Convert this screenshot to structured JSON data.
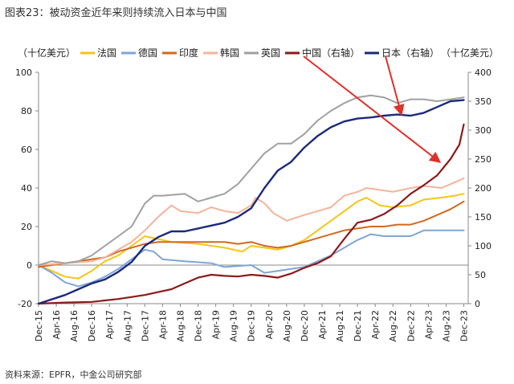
{
  "figure_title": "图表23：被动资金近年来则持续流入日本与中国",
  "source_note": "资料来源：EPFR，中金公司研究部",
  "chart_data": {
    "type": "line",
    "left_unit": "（十亿美元）",
    "right_unit": "（十亿美元）",
    "y_left": {
      "min": -20,
      "max": 100,
      "ticks": [
        -20,
        0,
        20,
        40,
        60,
        80,
        100
      ]
    },
    "y_right": {
      "min": 0,
      "max": 400,
      "ticks": [
        0,
        50,
        100,
        150,
        200,
        250,
        300,
        350,
        400
      ]
    },
    "x_range": [
      "2015-12",
      "2024-01"
    ],
    "x_ticks": [
      "Dec-15",
      "Apr-16",
      "Aug-16",
      "Dec-16",
      "Apr-17",
      "Aug-17",
      "Dec-17",
      "Apr-18",
      "Aug-18",
      "Dec-18",
      "Apr-19",
      "Aug-19",
      "Dec-19",
      "Apr-20",
      "Aug-20",
      "Dec-20",
      "Apr-21",
      "Aug-21",
      "Dec-21",
      "Apr-22",
      "Aug-22",
      "Dec-22",
      "Apr-23",
      "Aug-23",
      "Dec-23"
    ],
    "grid": false,
    "legend_position": "top",
    "series": [
      {
        "name": "法国",
        "axis": "left",
        "color": "#F5C518",
        "width": 2,
        "points": [
          [
            "2015-12",
            0
          ],
          [
            "2016-03",
            -3
          ],
          [
            "2016-06",
            -6
          ],
          [
            "2016-09",
            -7
          ],
          [
            "2016-12",
            -3
          ],
          [
            "2017-03",
            2
          ],
          [
            "2017-06",
            5
          ],
          [
            "2017-09",
            10
          ],
          [
            "2017-12",
            15
          ],
          [
            "2018-02",
            14
          ],
          [
            "2018-06",
            12
          ],
          [
            "2018-12",
            11
          ],
          [
            "2019-06",
            9
          ],
          [
            "2019-10",
            7
          ],
          [
            "2019-12",
            10
          ],
          [
            "2020-03",
            9
          ],
          [
            "2020-06",
            8
          ],
          [
            "2020-09",
            10
          ],
          [
            "2020-12",
            13
          ],
          [
            "2021-03",
            18
          ],
          [
            "2021-06",
            23
          ],
          [
            "2021-09",
            28
          ],
          [
            "2021-12",
            33
          ],
          [
            "2022-02",
            35
          ],
          [
            "2022-05",
            31
          ],
          [
            "2022-08",
            30
          ],
          [
            "2022-12",
            31
          ],
          [
            "2023-03",
            34
          ],
          [
            "2023-07",
            35
          ],
          [
            "2023-10",
            36
          ],
          [
            "2023-12",
            37
          ]
        ]
      },
      {
        "name": "德国",
        "axis": "left",
        "color": "#7EA6D8",
        "width": 2,
        "points": [
          [
            "2015-12",
            0
          ],
          [
            "2016-03",
            -4
          ],
          [
            "2016-06",
            -9
          ],
          [
            "2016-09",
            -11
          ],
          [
            "2016-12",
            -9
          ],
          [
            "2017-03",
            -6
          ],
          [
            "2017-06",
            -2
          ],
          [
            "2017-09",
            3
          ],
          [
            "2017-12",
            8
          ],
          [
            "2018-02",
            7
          ],
          [
            "2018-04",
            3
          ],
          [
            "2018-09",
            2
          ],
          [
            "2019-03",
            1
          ],
          [
            "2019-06",
            -1
          ],
          [
            "2019-12",
            0
          ],
          [
            "2020-03",
            -4
          ],
          [
            "2020-06",
            -3
          ],
          [
            "2020-09",
            -2
          ],
          [
            "2020-12",
            -1
          ],
          [
            "2021-03",
            2
          ],
          [
            "2021-06",
            5
          ],
          [
            "2021-09",
            9
          ],
          [
            "2021-12",
            13
          ],
          [
            "2022-03",
            16
          ],
          [
            "2022-06",
            15
          ],
          [
            "2022-09",
            15
          ],
          [
            "2022-12",
            15
          ],
          [
            "2023-03",
            18
          ],
          [
            "2023-06",
            18
          ],
          [
            "2023-09",
            18
          ],
          [
            "2023-12",
            18
          ]
        ]
      },
      {
        "name": "印度",
        "axis": "left",
        "color": "#D2691E",
        "width": 2,
        "points": [
          [
            "2015-12",
            -1
          ],
          [
            "2016-03",
            0
          ],
          [
            "2016-06",
            1
          ],
          [
            "2016-09",
            2
          ],
          [
            "2016-12",
            3
          ],
          [
            "2017-03",
            4
          ],
          [
            "2017-06",
            7
          ],
          [
            "2017-09",
            9
          ],
          [
            "2017-12",
            11
          ],
          [
            "2018-03",
            12
          ],
          [
            "2018-06",
            12
          ],
          [
            "2018-12",
            12
          ],
          [
            "2019-06",
            12
          ],
          [
            "2019-09",
            11
          ],
          [
            "2019-12",
            12
          ],
          [
            "2020-03",
            10
          ],
          [
            "2020-06",
            9
          ],
          [
            "2020-09",
            10
          ],
          [
            "2020-12",
            12
          ],
          [
            "2021-03",
            14
          ],
          [
            "2021-06",
            16
          ],
          [
            "2021-09",
            18
          ],
          [
            "2021-12",
            19
          ],
          [
            "2022-03",
            20
          ],
          [
            "2022-06",
            20
          ],
          [
            "2022-09",
            21
          ],
          [
            "2022-12",
            21
          ],
          [
            "2023-03",
            23
          ],
          [
            "2023-06",
            26
          ],
          [
            "2023-09",
            29
          ],
          [
            "2023-12",
            33
          ]
        ]
      },
      {
        "name": "韩国",
        "axis": "left",
        "color": "#F4B49A",
        "width": 2,
        "points": [
          [
            "2015-12",
            0
          ],
          [
            "2016-06",
            1
          ],
          [
            "2016-12",
            2
          ],
          [
            "2017-03",
            4
          ],
          [
            "2017-06",
            8
          ],
          [
            "2017-09",
            12
          ],
          [
            "2017-12",
            18
          ],
          [
            "2018-03",
            25
          ],
          [
            "2018-06",
            31
          ],
          [
            "2018-08",
            28
          ],
          [
            "2018-12",
            27
          ],
          [
            "2019-03",
            30
          ],
          [
            "2019-06",
            28
          ],
          [
            "2019-09",
            27
          ],
          [
            "2019-12",
            31
          ],
          [
            "2020-01",
            35
          ],
          [
            "2020-03",
            32
          ],
          [
            "2020-05",
            27
          ],
          [
            "2020-08",
            23
          ],
          [
            "2020-12",
            26
          ],
          [
            "2021-03",
            28
          ],
          [
            "2021-06",
            30
          ],
          [
            "2021-09",
            36
          ],
          [
            "2021-12",
            38
          ],
          [
            "2022-02",
            40
          ],
          [
            "2022-05",
            39
          ],
          [
            "2022-08",
            38
          ],
          [
            "2022-12",
            40
          ],
          [
            "2023-03",
            41
          ],
          [
            "2023-07",
            40
          ],
          [
            "2023-10",
            43
          ],
          [
            "2023-12",
            45
          ]
        ]
      },
      {
        "name": "英国",
        "axis": "left",
        "color": "#A0A0A0",
        "width": 2,
        "points": [
          [
            "2015-12",
            0
          ],
          [
            "2016-03",
            2
          ],
          [
            "2016-06",
            1
          ],
          [
            "2016-09",
            2
          ],
          [
            "2016-12",
            5
          ],
          [
            "2017-03",
            10
          ],
          [
            "2017-06",
            15
          ],
          [
            "2017-09",
            20
          ],
          [
            "2017-12",
            32
          ],
          [
            "2018-02",
            36
          ],
          [
            "2018-04",
            36
          ],
          [
            "2018-09",
            37
          ],
          [
            "2018-12",
            33
          ],
          [
            "2019-03",
            35
          ],
          [
            "2019-06",
            37
          ],
          [
            "2019-09",
            42
          ],
          [
            "2019-12",
            50
          ],
          [
            "2020-03",
            58
          ],
          [
            "2020-06",
            63
          ],
          [
            "2020-09",
            63
          ],
          [
            "2020-12",
            68
          ],
          [
            "2021-03",
            75
          ],
          [
            "2021-06",
            80
          ],
          [
            "2021-09",
            84
          ],
          [
            "2021-12",
            87
          ],
          [
            "2022-03",
            88
          ],
          [
            "2022-06",
            87
          ],
          [
            "2022-09",
            84
          ],
          [
            "2022-12",
            86
          ],
          [
            "2023-03",
            86
          ],
          [
            "2023-06",
            85
          ],
          [
            "2023-09",
            86
          ],
          [
            "2023-12",
            87
          ]
        ]
      },
      {
        "name": "中国（右轴）",
        "axis": "right",
        "color": "#8B1A1A",
        "width": 2.2,
        "points": [
          [
            "2015-12",
            0
          ],
          [
            "2016-06",
            2
          ],
          [
            "2016-12",
            3
          ],
          [
            "2017-06",
            8
          ],
          [
            "2017-12",
            15
          ],
          [
            "2018-03",
            20
          ],
          [
            "2018-06",
            25
          ],
          [
            "2018-09",
            35
          ],
          [
            "2018-12",
            45
          ],
          [
            "2019-03",
            50
          ],
          [
            "2019-06",
            48
          ],
          [
            "2019-09",
            47
          ],
          [
            "2019-12",
            50
          ],
          [
            "2020-03",
            48
          ],
          [
            "2020-06",
            45
          ],
          [
            "2020-09",
            52
          ],
          [
            "2020-12",
            62
          ],
          [
            "2021-03",
            70
          ],
          [
            "2021-06",
            82
          ],
          [
            "2021-09",
            112
          ],
          [
            "2021-12",
            140
          ],
          [
            "2022-03",
            145
          ],
          [
            "2022-06",
            155
          ],
          [
            "2022-09",
            170
          ],
          [
            "2022-12",
            190
          ],
          [
            "2023-03",
            205
          ],
          [
            "2023-06",
            222
          ],
          [
            "2023-09",
            250
          ],
          [
            "2023-11",
            275
          ],
          [
            "2023-12",
            310
          ]
        ]
      },
      {
        "name": "日本（右轴）",
        "axis": "right",
        "color": "#1B2A7A",
        "width": 2.4,
        "points": [
          [
            "2015-12",
            0
          ],
          [
            "2016-06",
            15
          ],
          [
            "2016-09",
            25
          ],
          [
            "2016-12",
            35
          ],
          [
            "2017-03",
            42
          ],
          [
            "2017-06",
            55
          ],
          [
            "2017-09",
            72
          ],
          [
            "2017-12",
            100
          ],
          [
            "2018-03",
            115
          ],
          [
            "2018-06",
            125
          ],
          [
            "2018-09",
            125
          ],
          [
            "2018-12",
            130
          ],
          [
            "2019-03",
            135
          ],
          [
            "2019-06",
            140
          ],
          [
            "2019-09",
            150
          ],
          [
            "2019-12",
            165
          ],
          [
            "2020-03",
            200
          ],
          [
            "2020-06",
            230
          ],
          [
            "2020-09",
            245
          ],
          [
            "2020-12",
            270
          ],
          [
            "2021-03",
            290
          ],
          [
            "2021-06",
            305
          ],
          [
            "2021-09",
            315
          ],
          [
            "2021-12",
            320
          ],
          [
            "2022-03",
            322
          ],
          [
            "2022-06",
            325
          ],
          [
            "2022-09",
            327
          ],
          [
            "2022-12",
            325
          ],
          [
            "2023-03",
            330
          ],
          [
            "2023-06",
            340
          ],
          [
            "2023-09",
            350
          ],
          [
            "2023-12",
            352
          ]
        ]
      }
    ]
  }
}
